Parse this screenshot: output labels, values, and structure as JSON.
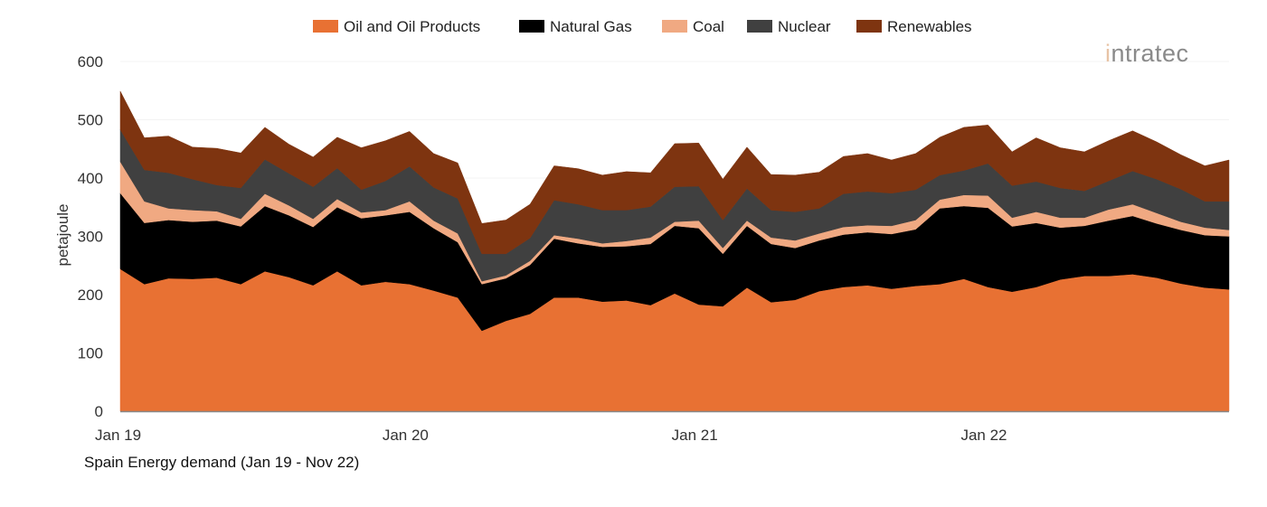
{
  "chart_data": {
    "type": "area",
    "stacked": true,
    "title": "Spain Energy demand (Jan 19 - Nov 22)",
    "ylabel": "petajoule",
    "xlabel": "",
    "ylim": [
      0,
      600
    ],
    "yticks": [
      0,
      100,
      200,
      300,
      400,
      500,
      600
    ],
    "xtick_labels": [
      {
        "index": 0,
        "label": "Jan 19"
      },
      {
        "index": 12,
        "label": "Jan 20"
      },
      {
        "index": 24,
        "label": "Jan 21"
      },
      {
        "index": 36,
        "label": "Jan 22"
      }
    ],
    "x_range": "Jan 2019 - Nov 2022 (monthly)",
    "legend_position": "top",
    "series": [
      {
        "name": "Oil and Oil Products",
        "color": "#E87133",
        "values": [
          244,
          218,
          228,
          227,
          229,
          218,
          240,
          230,
          216,
          240,
          216,
          222,
          218,
          207,
          195,
          138,
          155,
          167,
          195,
          195,
          188,
          190,
          182,
          202,
          183,
          180,
          212,
          187,
          191,
          206,
          213,
          216,
          210,
          215,
          218,
          227,
          213,
          205,
          213,
          226,
          232,
          232,
          235,
          229,
          219,
          212,
          209
        ]
      },
      {
        "name": "Natural Gas",
        "color": "#000000",
        "values": [
          130,
          105,
          100,
          98,
          98,
          99,
          112,
          106,
          100,
          110,
          115,
          114,
          124,
          107,
          95,
          80,
          73,
          84,
          101,
          93,
          94,
          93,
          105,
          116,
          131,
          90,
          106,
          100,
          89,
          87,
          90,
          91,
          94,
          97,
          130,
          125,
          136,
          112,
          110,
          89,
          86,
          95,
          100,
          93,
          92,
          90,
          91
        ]
      },
      {
        "name": "Coal",
        "color": "#F0A982",
        "values": [
          54,
          37,
          20,
          20,
          16,
          13,
          21,
          17,
          14,
          14,
          10,
          9,
          18,
          13,
          15,
          5,
          5,
          7,
          6,
          8,
          6,
          9,
          11,
          7,
          13,
          10,
          9,
          11,
          13,
          12,
          13,
          12,
          14,
          16,
          15,
          19,
          21,
          15,
          19,
          17,
          14,
          19,
          20,
          18,
          14,
          13,
          11
        ]
      },
      {
        "name": "Nuclear",
        "color": "#404040",
        "values": [
          55,
          54,
          61,
          53,
          45,
          53,
          59,
          55,
          55,
          53,
          39,
          50,
          60,
          57,
          60,
          47,
          37,
          39,
          60,
          59,
          57,
          53,
          53,
          60,
          59,
          48,
          55,
          47,
          49,
          43,
          57,
          58,
          56,
          52,
          42,
          42,
          55,
          55,
          52,
          51,
          46,
          49,
          57,
          58,
          56,
          45,
          49
        ]
      },
      {
        "name": "Renewables",
        "color": "#7E3410",
        "values": [
          66,
          55,
          63,
          55,
          63,
          60,
          55,
          50,
          51,
          53,
          72,
          69,
          60,
          58,
          61,
          52,
          58,
          58,
          59,
          61,
          60,
          66,
          58,
          74,
          74,
          70,
          71,
          61,
          63,
          62,
          64,
          65,
          57,
          62,
          65,
          74,
          66,
          58,
          75,
          69,
          67,
          69,
          69,
          64,
          59,
          61,
          71
        ]
      }
    ]
  },
  "logo": {
    "text": "intratec"
  }
}
